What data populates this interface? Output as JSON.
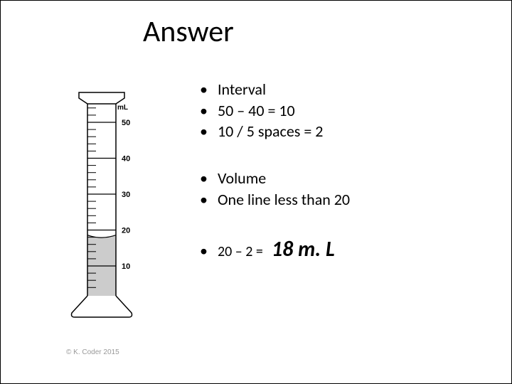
{
  "title": "Answer",
  "bullets_group1": [
    "Interval",
    "50 – 40 = 10",
    "10 / 5 spaces = 2"
  ],
  "bullets_group2": [
    "Volume",
    "One line less than 20"
  ],
  "final_line_prefix": "20 – 2 =",
  "final_answer": "18 m. L",
  "copyright": "© K. Coder 2015",
  "cylinder": {
    "unit_label": "mL",
    "major_ticks": [
      50,
      40,
      30,
      20,
      10
    ],
    "minor_per_major": 5,
    "liquid_level": 18,
    "body_fill": "#ffffff",
    "liquid_fill": "#cccccc",
    "stroke": "#000000",
    "tick_label_fontsize": 11,
    "unit_label_fontsize": 10
  }
}
